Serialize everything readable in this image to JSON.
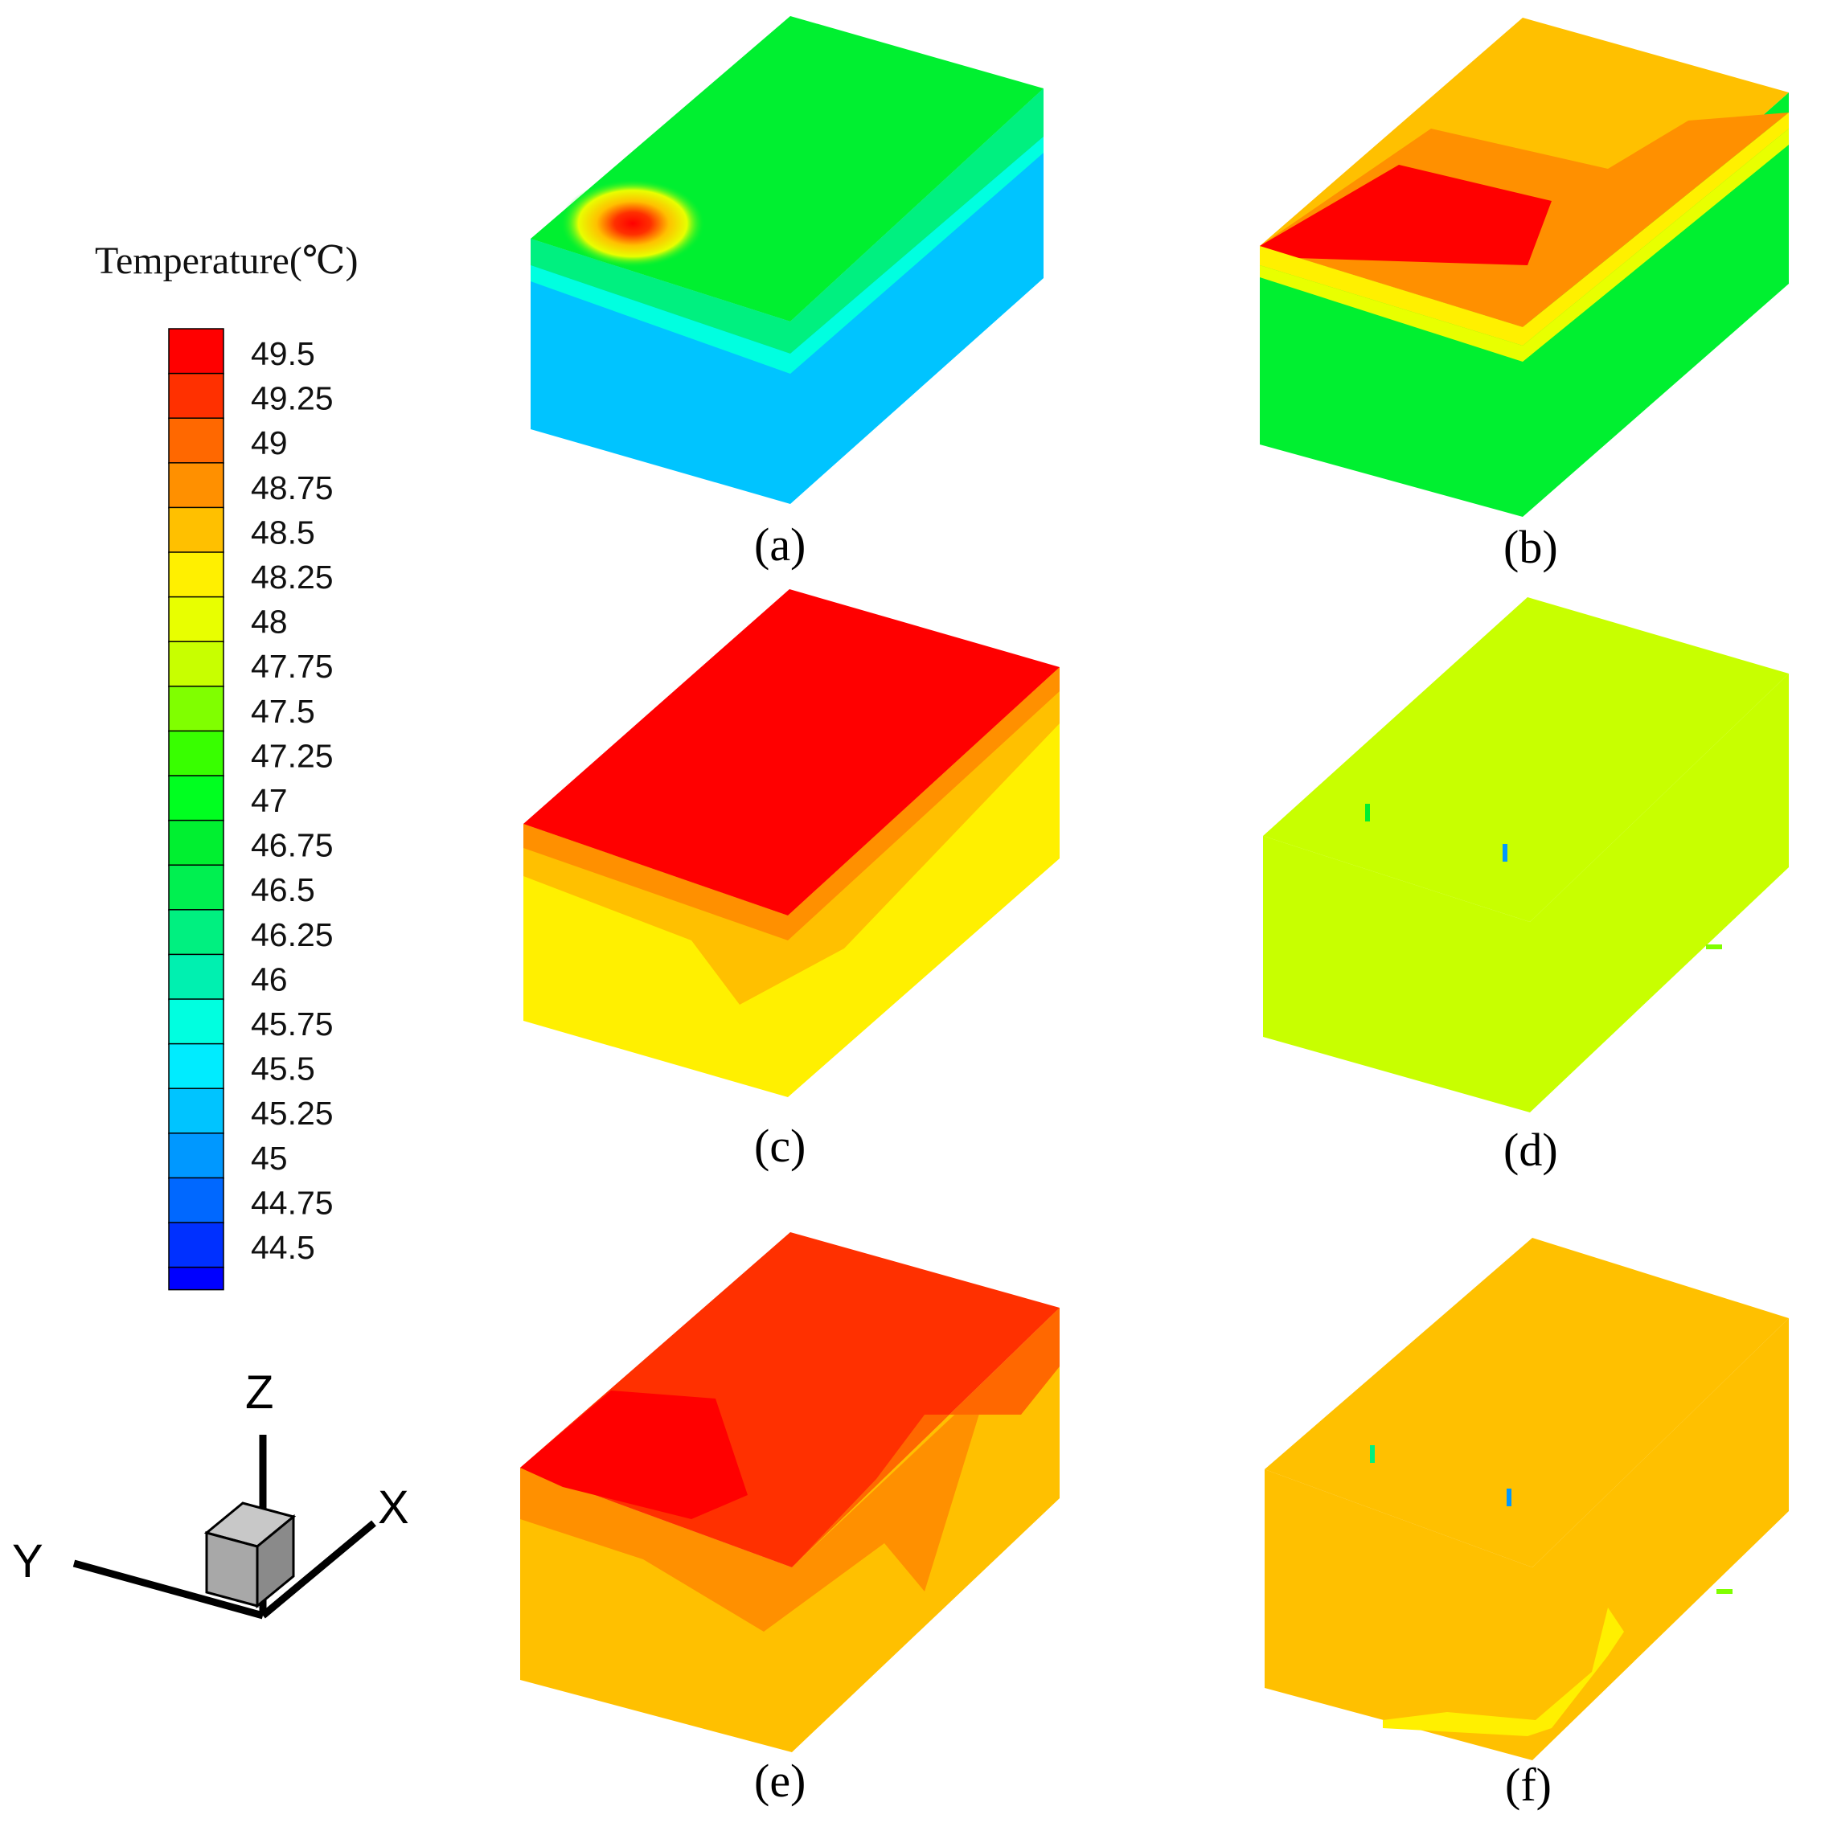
{
  "legend": {
    "title": "Temperature(℃)",
    "levels": [
      {
        "label": "49.5",
        "color": "#ff0000"
      },
      {
        "label": "49.25",
        "color": "#ff3000"
      },
      {
        "label": "49",
        "color": "#ff6800"
      },
      {
        "label": "48.75",
        "color": "#ff9000"
      },
      {
        "label": "48.5",
        "color": "#ffc000"
      },
      {
        "label": "48.25",
        "color": "#fff000"
      },
      {
        "label": "48",
        "color": "#e8ff00"
      },
      {
        "label": "47.75",
        "color": "#c8ff00"
      },
      {
        "label": "47.5",
        "color": "#80ff00"
      },
      {
        "label": "47.25",
        "color": "#38ff00"
      },
      {
        "label": "47",
        "color": "#00ff20"
      },
      {
        "label": "46.75",
        "color": "#00f030"
      },
      {
        "label": "46.5",
        "color": "#00f050"
      },
      {
        "label": "46.25",
        "color": "#00f080"
      },
      {
        "label": "46",
        "color": "#00f0b0"
      },
      {
        "label": "45.75",
        "color": "#00ffe0"
      },
      {
        "label": "45.5",
        "color": "#00ecff"
      },
      {
        "label": "45.25",
        "color": "#00c4ff"
      },
      {
        "label": "45",
        "color": "#0098ff"
      },
      {
        "label": "44.75",
        "color": "#0068ff"
      },
      {
        "label": "44.5",
        "color": "#0030ff"
      }
    ],
    "bottom_color": "#0000ff"
  },
  "axes_triad": {
    "z": "Z",
    "x": "X",
    "y": "Y"
  },
  "panels": [
    {
      "id": "a",
      "caption": "(a)",
      "top": "#00f030",
      "left": "#00c4ff",
      "right": "#00c4ff"
    },
    {
      "id": "b",
      "caption": "(b)",
      "top": "#ff6800",
      "left": "#00f030",
      "right": "#00f030"
    },
    {
      "id": "c",
      "caption": "(c)",
      "top": "#ff0000",
      "left": "#fff000",
      "right": "#fff000"
    },
    {
      "id": "d",
      "caption": "(d)",
      "top": "#c8ff00",
      "left": "#c8ff00",
      "right": "#c8ff00"
    },
    {
      "id": "e",
      "caption": "(e)",
      "top": "#ff3000",
      "left": "#ffc000",
      "right": "#ffc000"
    },
    {
      "id": "f",
      "caption": "(f)",
      "top": "#ffc000",
      "left": "#ffc000",
      "right": "#ffc000"
    }
  ]
}
